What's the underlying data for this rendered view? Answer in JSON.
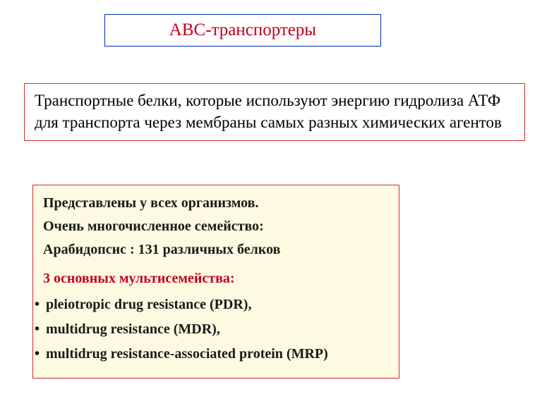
{
  "colors": {
    "title_text": "#c00020",
    "title_border": "#002db3",
    "def_text": "#000000",
    "def_border": "#cc3333",
    "detail_bg": "#fdfae1",
    "detail_border": "#d12b2b",
    "detail_text": "#1a1a1a",
    "red_line": "#c00020",
    "page_bg": "#ffffff"
  },
  "typography": {
    "family": "Times New Roman",
    "title_size_pt": 25,
    "def_size_pt": 23,
    "detail_size_pt": 20,
    "detail_weight": "bold"
  },
  "title": "ABC-транспортеры",
  "definition": "Транспортные белки, которые используют энергию гидролиза АТФ для транспорта через мембраны самых разных химических агентов",
  "details": {
    "line1": "Представлены у всех организмов.",
    "line2": "Очень многочисленное семейство:",
    "line3": "Арабидопсис : 131 различных белков",
    "red_heading": "3 основных мультисемейства:",
    "bullets": [
      "pleiotropic drug resistance (PDR),",
      "multidrug resistance (MDR),",
      "multidrug resistance-associated protein (MRP)"
    ]
  }
}
